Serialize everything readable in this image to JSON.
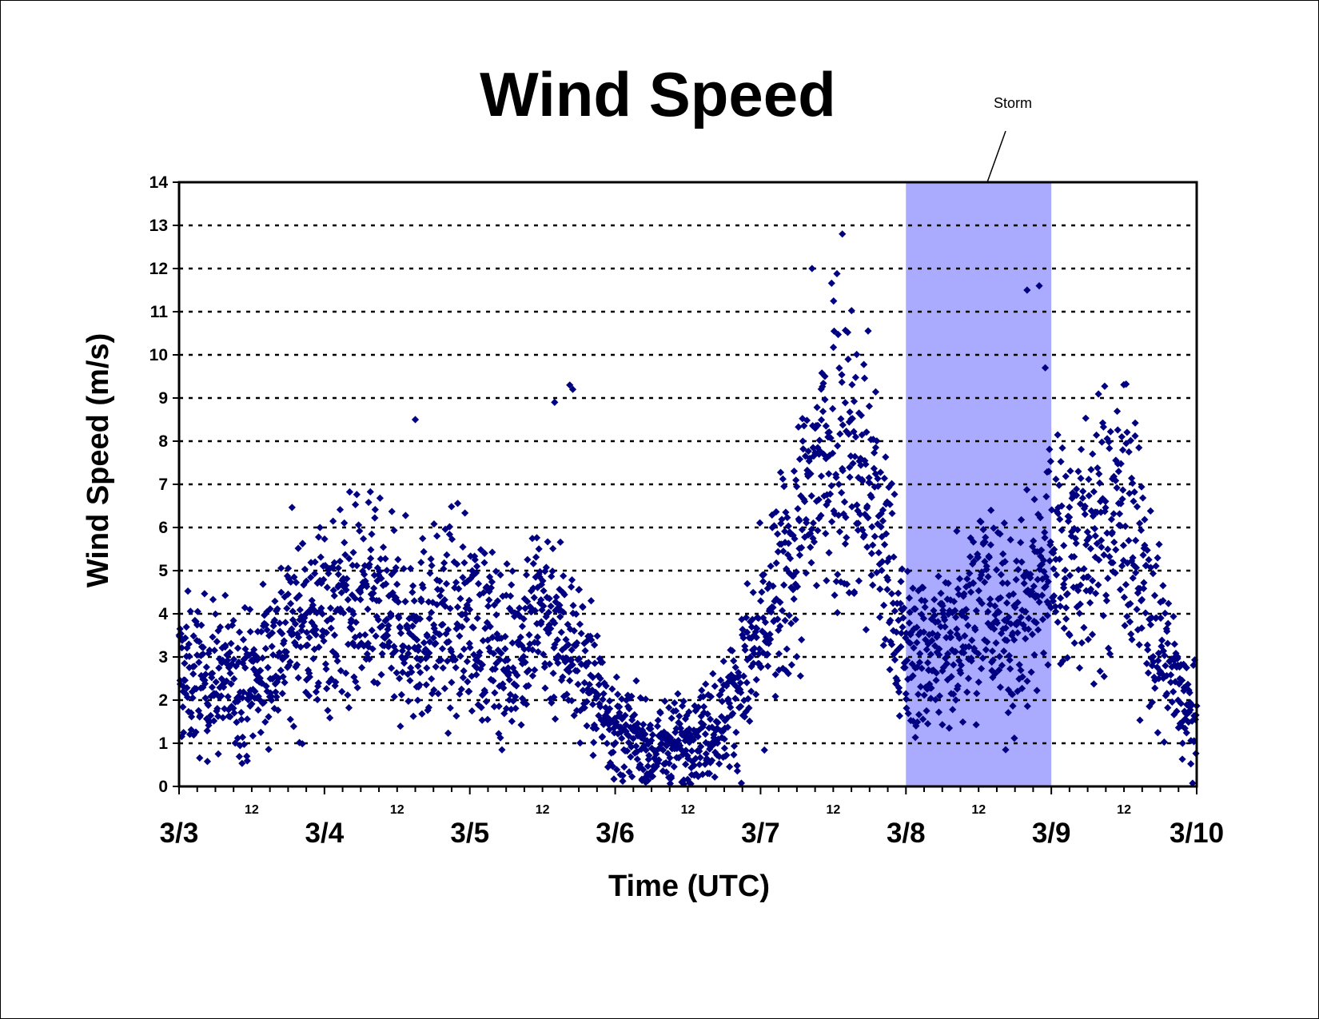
{
  "chart_data": {
    "type": "scatter",
    "title": "Wind Speed",
    "xlabel": "Time (UTC)",
    "ylabel": "Wind Speed (m/s)",
    "ylim": [
      0,
      14
    ],
    "yticks": [
      "0",
      "1",
      "2",
      "3",
      "4",
      "5",
      "6",
      "7",
      "8",
      "9",
      "10",
      "11",
      "12",
      "13",
      "14"
    ],
    "xlim": [
      "3/3 00:00",
      "3/10 00:00"
    ],
    "date_ticks": [
      "3/3",
      "3/4",
      "3/5",
      "3/6",
      "3/7",
      "3/8",
      "3/9",
      "3/10"
    ],
    "hour_tick_label": "12",
    "grid": "horizontal dotted",
    "legend": "none",
    "marker": "diamond",
    "series_color": "#000080",
    "series": [
      {
        "sampled_trend": {
          "note": "mean wind speed (m/s) per 6-hour interval; dense scatter generated around this trend",
          "x": [
            "3/3 00",
            "3/3 06",
            "3/3 12",
            "3/3 18",
            "3/4 00",
            "3/4 06",
            "3/4 12",
            "3/4 18",
            "3/5 00",
            "3/5 06",
            "3/5 12",
            "3/5 18",
            "3/6 00",
            "3/6 06",
            "3/6 12",
            "3/6 18",
            "3/7 00",
            "3/7 06",
            "3/7 12",
            "3/7 18",
            "3/8 00",
            "3/8 06",
            "3/8 12",
            "3/8 18",
            "3/9 00",
            "3/9 06",
            "3/9 12",
            "3/9 18",
            "3/10 00"
          ],
          "y": [
            2.6,
            2.5,
            2.4,
            3.6,
            4.0,
            4.3,
            3.6,
            3.7,
            3.9,
            3.0,
            4.2,
            3.0,
            1.3,
            0.8,
            1.1,
            1.6,
            3.4,
            5.5,
            8.5,
            7.0,
            3.0,
            3.2,
            4.5,
            3.5,
            5.5,
            5.5,
            6.5,
            3.2,
            1.2
          ]
        },
        "outliers": [
          {
            "x": "3/7 08:30",
            "y": 12.0
          },
          {
            "x": "3/7 13:30",
            "y": 12.8
          },
          {
            "x": "3/8 20:00",
            "y": 11.5
          },
          {
            "x": "3/8 22:00",
            "y": 11.6
          },
          {
            "x": "3/8 23:00",
            "y": 9.7
          },
          {
            "x": "3/4 15:00",
            "y": 8.5
          },
          {
            "x": "3/5 17:00",
            "y": 9.2
          },
          {
            "x": "3/5 14:00",
            "y": 8.9
          },
          {
            "x": "3/5 16:30",
            "y": 9.3
          },
          {
            "x": "3/6 11:00",
            "y": 0.1
          }
        ]
      }
    ],
    "annotation": {
      "label": "Storm",
      "shaded_region": [
        "3/8 00:00",
        "3/9 00:00"
      ],
      "shade_color": "#aaaaff"
    }
  }
}
